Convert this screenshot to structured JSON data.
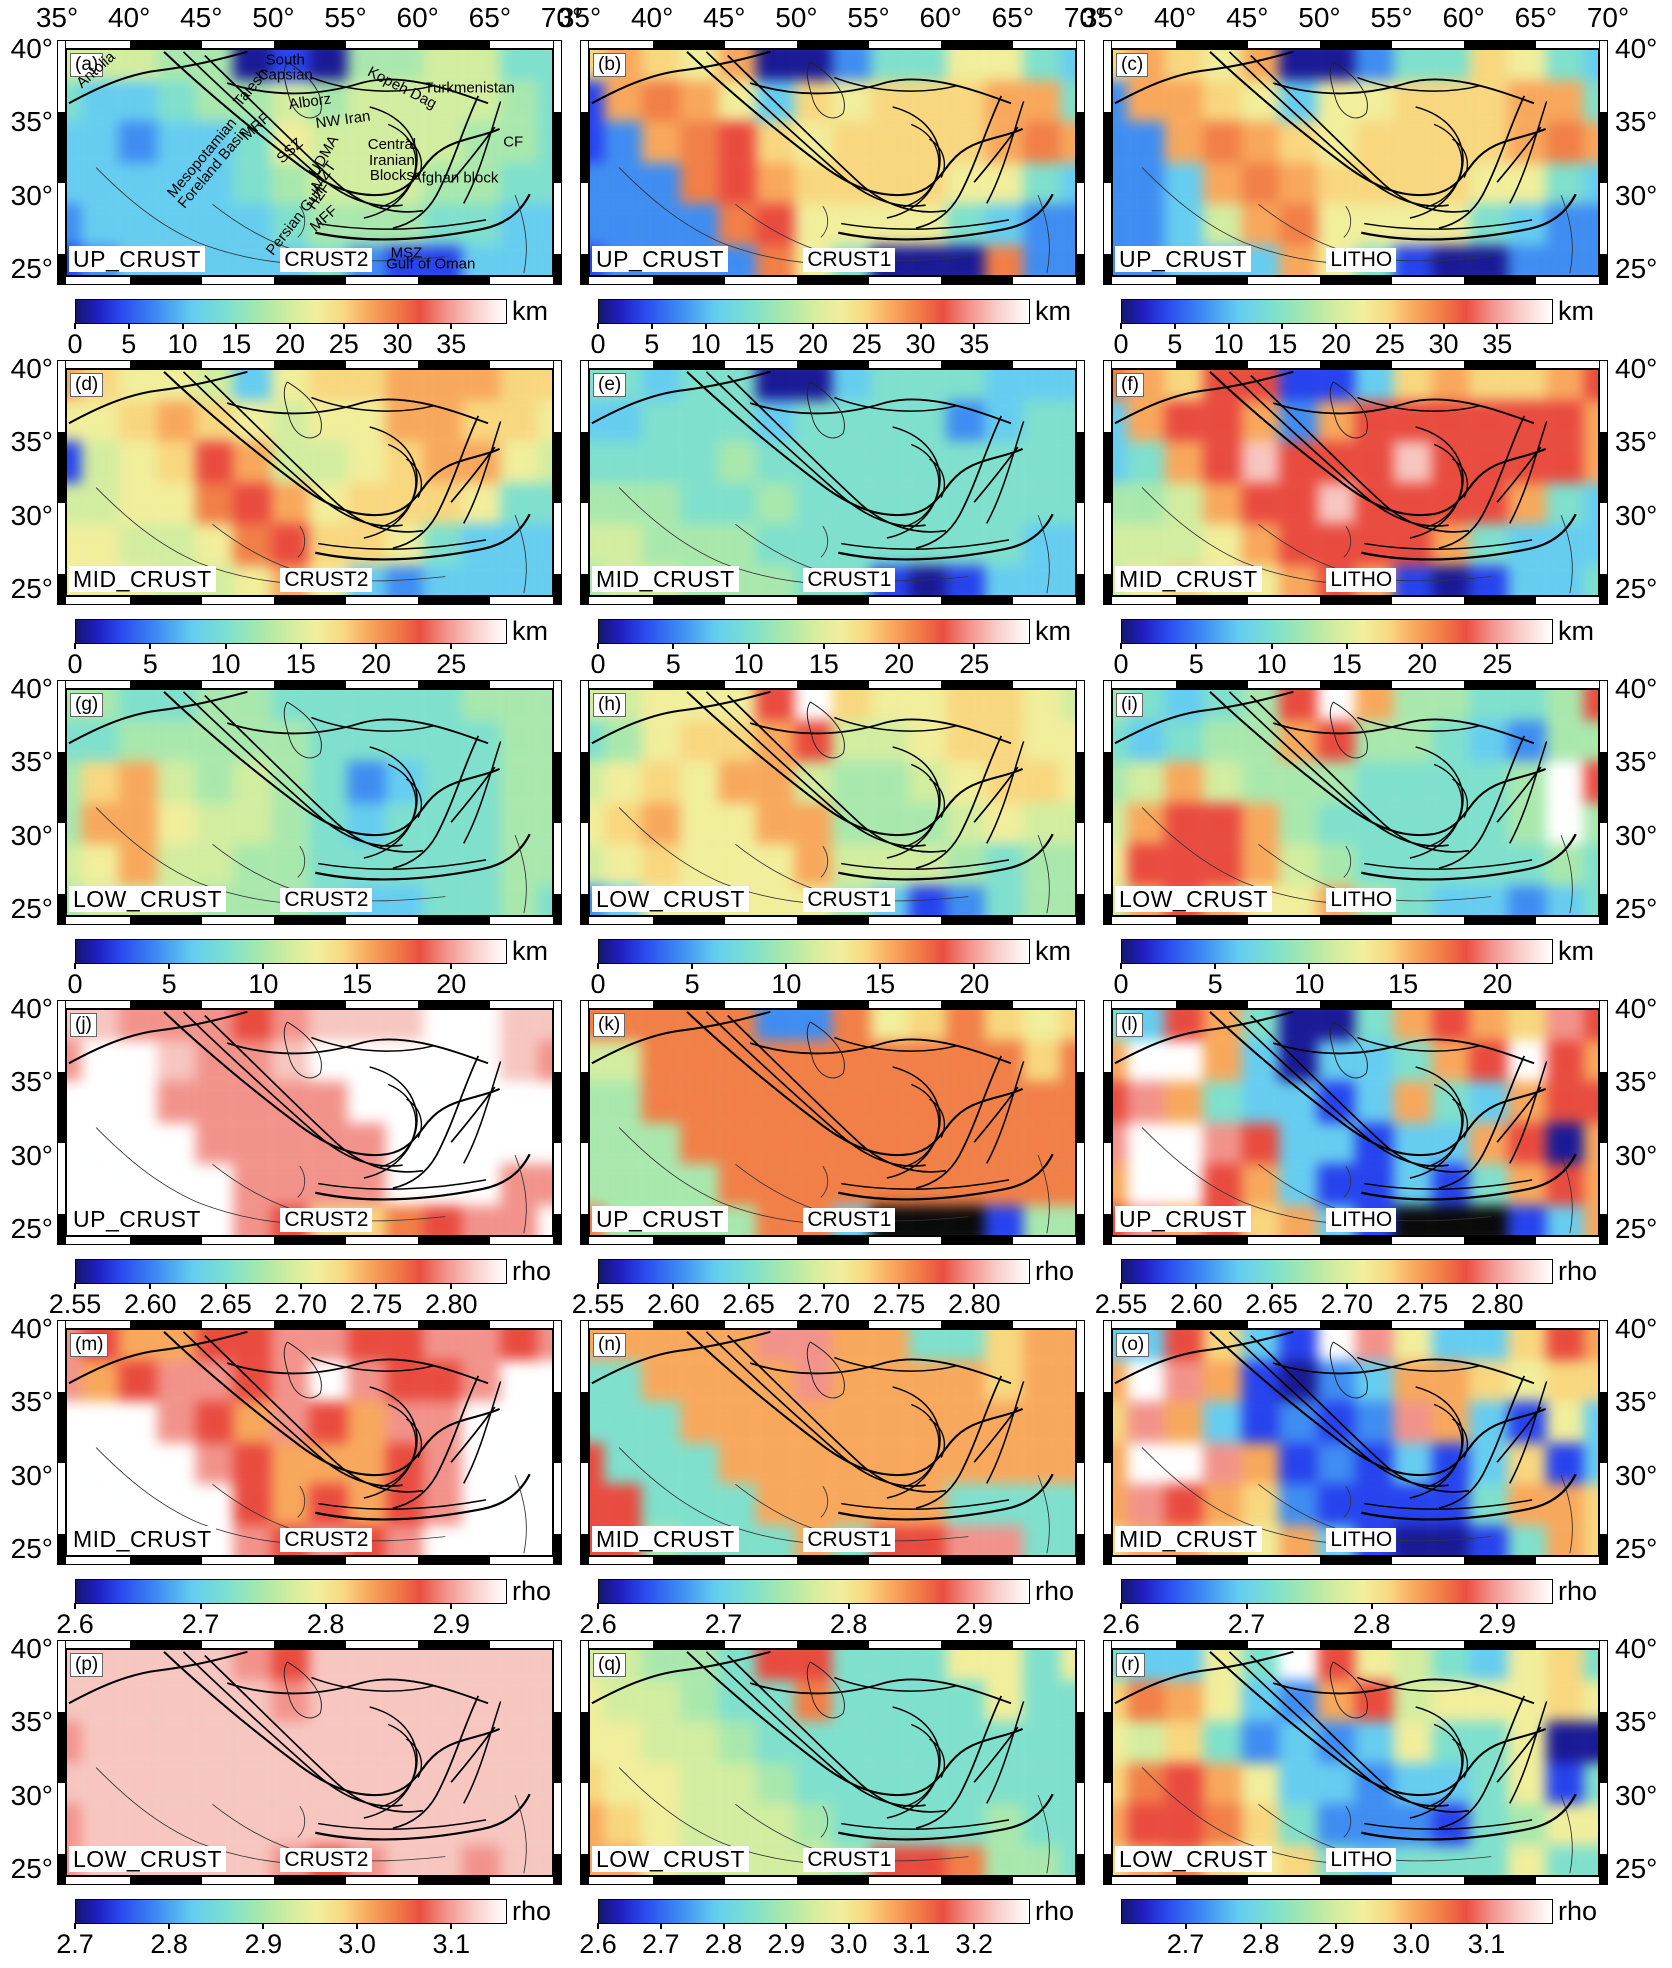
{
  "lon_ticks": [
    "35°",
    "40°",
    "45°",
    "50°",
    "55°",
    "60°",
    "65°",
    "70°"
  ],
  "lat_ticks": [
    "40°",
    "35°",
    "30°",
    "25°"
  ],
  "palette": {
    "0": "#0a0a0a",
    "1": "#1a1a96",
    "2": "#2743ee",
    "3": "#3f8df2",
    "4": "#66cdf0",
    "5": "#7fe0cd",
    "6": "#a9e8ad",
    "7": "#d2eda0",
    "8": "#f1ee9c",
    "9": "#f8d77f",
    "o": "#f8a85c",
    "O": "#f17f47",
    "R": "#e94b3f",
    "p": "#f2938b",
    "P": "#f7c6c0",
    "w": "#ffffff"
  },
  "rows": [
    {
      "panels": [
        {
          "letter": "(a)",
          "layer": "UP_CRUST",
          "model": "CRUST2",
          "grid": [
            "77766121667755",
            "54456676777765",
            "44344587777665",
            "44444567776655",
            "34444456665544",
            "23444445322444"
          ],
          "regions": [
            {
              "text": "Antolia",
              "x": 6,
              "y": 9,
              "rot": -42
            },
            {
              "text": "South\nCapsian",
              "x": 45,
              "y": 8,
              "rot": 0
            },
            {
              "text": "Talesh",
              "x": 38,
              "y": 17,
              "rot": -50
            },
            {
              "text": "Alborz",
              "x": 50,
              "y": 23,
              "rot": -8
            },
            {
              "text": "Kopeh Dag",
              "x": 69,
              "y": 17,
              "rot": 27
            },
            {
              "text": "Turkmenistan",
              "x": 83,
              "y": 17,
              "rot": 0
            },
            {
              "text": "NW Iran",
              "x": 57,
              "y": 31,
              "rot": -8
            },
            {
              "text": "MRF",
              "x": 39,
              "y": 34,
              "rot": -42
            },
            {
              "text": "Mesopotamian\nForeland Basin",
              "x": 29,
              "y": 50,
              "rot": -50
            },
            {
              "text": "SSZ",
              "x": 46,
              "y": 45,
              "rot": -42
            },
            {
              "text": "UDMA",
              "x": 53,
              "y": 47,
              "rot": -60
            },
            {
              "text": "MZT",
              "x": 53,
              "y": 56,
              "rot": -55
            },
            {
              "text": "HZF",
              "x": 52,
              "y": 65,
              "rot": -55
            },
            {
              "text": "Central\nIranian\nBlocks",
              "x": 67,
              "y": 49,
              "rot": 0
            },
            {
              "text": "Afghan block",
              "x": 80,
              "y": 57,
              "rot": 0
            },
            {
              "text": "CF",
              "x": 92,
              "y": 41,
              "rot": 0
            },
            {
              "text": "Persian Gulf",
              "x": 47,
              "y": 76,
              "rot": -52
            },
            {
              "text": "MFF",
              "x": 53,
              "y": 75,
              "rot": -42
            },
            {
              "text": "MSZ",
              "x": 70,
              "y": 90,
              "rot": 0
            },
            {
              "text": "Gulf of Oman",
              "x": 75,
              "y": 95,
              "rot": 0
            }
          ]
        },
        {
          "letter": "(b)",
          "layer": "UP_CRUST",
          "model": "CRUST1",
          "grid": [
            "9o98o113558854",
            "2oOo8498999oo5",
            "23oOR989999oOo",
            "333ORo99998854",
            "3333OR88885433",
            "23333O85111O33"
          ]
        },
        {
          "letter": "(c)",
          "layer": "UP_CRUST",
          "model": "LITHO",
          "grid": [
            "9o98o113559854",
            "3oo98488999oo5",
            "33oOo989999oOo",
            "334oOo99998854",
            "3347oO88885433",
            "33444o85211333"
          ]
        }
      ],
      "colorbars": [
        {
          "unit": "km",
          "ticks": [
            {
              "t": "0",
              "p": 0
            },
            {
              "t": "5",
              "p": 0.125
            },
            {
              "t": "10",
              "p": 0.25
            },
            {
              "t": "15",
              "p": 0.375
            },
            {
              "t": "20",
              "p": 0.5
            },
            {
              "t": "25",
              "p": 0.625
            },
            {
              "t": "30",
              "p": 0.75
            },
            {
              "t": "35",
              "p": 0.875
            }
          ]
        },
        {
          "unit": "km",
          "ticks": [
            {
              "t": "0",
              "p": 0
            },
            {
              "t": "5",
              "p": 0.125
            },
            {
              "t": "10",
              "p": 0.25
            },
            {
              "t": "15",
              "p": 0.375
            },
            {
              "t": "20",
              "p": 0.5
            },
            {
              "t": "25",
              "p": 0.625
            },
            {
              "t": "30",
              "p": 0.75
            },
            {
              "t": "35",
              "p": 0.875
            }
          ]
        },
        {
          "unit": "km",
          "ticks": [
            {
              "t": "0",
              "p": 0
            },
            {
              "t": "5",
              "p": 0.125
            },
            {
              "t": "10",
              "p": 0.25
            },
            {
              "t": "15",
              "p": 0.375
            },
            {
              "t": "20",
              "p": 0.5
            },
            {
              "t": "25",
              "p": 0.625
            },
            {
              "t": "30",
              "p": 0.75
            },
            {
              "t": "35",
              "p": 0.875
            }
          ]
        }
      ]
    },
    {
      "panels": [
        {
          "letter": "(d)",
          "layer": "MID_CRUST",
          "model": "CRUST2",
          "grid": [
            "o98874899ooo99",
            "889o98788oo998",
            "2789Ro7789oo87",
            "7788ORo8999855",
            "88778OR9985444",
            "888778o8434444"
          ]
        },
        {
          "letter": "(e)",
          "layer": "MID_CRUST",
          "model": "CRUST1",
          "grid": [
            "55455114555444",
            "44555455553455",
            "55556555555555",
            "66655655555555",
            "77666555555544",
            "67766655212444"
          ]
        },
        {
          "letter": "(f)",
          "layer": "MID_CRUST",
          "model": "LITHO",
          "grid": [
            "Oo9RR2249o99oR",
            "4oRRo3oRRRRRRo",
            "45oRPRRRPRRRRo",
            "667oRRPRRRRo54",
            "7778oRRRRo5444",
            "78988oRo212445"
          ]
        }
      ],
      "colorbars": [
        {
          "unit": "km",
          "ticks": [
            {
              "t": "0",
              "p": 0
            },
            {
              "t": "5",
              "p": 0.175
            },
            {
              "t": "10",
              "p": 0.35
            },
            {
              "t": "15",
              "p": 0.525
            },
            {
              "t": "20",
              "p": 0.7
            },
            {
              "t": "25",
              "p": 0.875
            }
          ]
        },
        {
          "unit": "km",
          "ticks": [
            {
              "t": "0",
              "p": 0
            },
            {
              "t": "5",
              "p": 0.175
            },
            {
              "t": "10",
              "p": 0.35
            },
            {
              "t": "15",
              "p": 0.525
            },
            {
              "t": "20",
              "p": 0.7
            },
            {
              "t": "25",
              "p": 0.875
            }
          ]
        },
        {
          "unit": "km",
          "ticks": [
            {
              "t": "0",
              "p": 0
            },
            {
              "t": "5",
              "p": 0.175
            },
            {
              "t": "10",
              "p": 0.35
            },
            {
              "t": "15",
              "p": 0.525
            },
            {
              "t": "20",
              "p": 0.7
            },
            {
              "t": "25",
              "p": 0.875
            }
          ]
        }
      ]
    },
    {
      "panels": [
        {
          "letter": "(g)",
          "layer": "LOW_CRUST",
          "model": "CRUST2",
          "grid": [
            "66556655555666",
            "55666665555566",
            "69o76765345566",
            "6oo87765455566",
            "78o77665555566",
            "67776665445565"
          ]
        },
        {
          "letter": "(h)",
          "layer": "LOW_CRUST",
          "model": "CRUST1",
          "grid": [
            "77888Rw9889987",
            "56899oR7789988",
            "7898oo76678998",
            "89o88oo6667877",
            "789888o7776566",
            "34888886423566"
          ]
        },
        {
          "letter": "(i)",
          "layer": "LOW_CRUST",
          "model": "LITHO",
          "grid": [
            "65456Rwo66556R",
            "54566oR6654366",
            "67o766655556wR",
            "7oRRo6555556w6",
            "8RRRo765555565",
            "7oRo88o6544345"
          ]
        }
      ],
      "colorbars": [
        {
          "unit": "km",
          "ticks": [
            {
              "t": "0",
              "p": 0
            },
            {
              "t": "5",
              "p": 0.219
            },
            {
              "t": "10",
              "p": 0.438
            },
            {
              "t": "15",
              "p": 0.656
            },
            {
              "t": "20",
              "p": 0.875
            }
          ]
        },
        {
          "unit": "km",
          "ticks": [
            {
              "t": "0",
              "p": 0
            },
            {
              "t": "5",
              "p": 0.219
            },
            {
              "t": "10",
              "p": 0.438
            },
            {
              "t": "15",
              "p": 0.656
            },
            {
              "t": "20",
              "p": 0.875
            }
          ]
        },
        {
          "unit": "km",
          "ticks": [
            {
              "t": "0",
              "p": 0
            },
            {
              "t": "5",
              "p": 0.219
            },
            {
              "t": "10",
              "p": 0.438
            },
            {
              "t": "15",
              "p": 0.656
            },
            {
              "t": "20",
              "p": 0.875
            }
          ]
        }
      ]
    },
    {
      "panels": [
        {
          "letter": "(j)",
          "layer": "UP_CRUST",
          "model": "CRUST2",
          "grid": [
            "PPpppRpPPPwwPP",
            "pwwPppPwwwwwPp",
            "wwwpppppwwwwww",
            "wwwwpppppwwwww",
            "wwwwwppppwwwpp",
            "wwwwwpR99ORppw"
          ]
        },
        {
          "letter": "(k)",
          "layer": "UP_CRUST",
          "model": "CRUST1",
          "grid": [
            "OOOOO33O89O989",
            "77OOOOOOOOOO9O",
            "66OOOOOOOOOOOO",
            "666OOOOOOOOOOO",
            "6666OOOOOOOOOO",
            "O6666OO4000266"
          ]
        },
        {
          "letter": "(l)",
          "layer": "UP_CRUST",
          "model": "LITHO",
          "grid": [
            "54Ro5115oRo9pR",
            "owwo41445oRwRo",
            "Rpo54424o54oRR",
            "pwwpR44244oR1o",
            "owwRo422425oRo",
            "RpoR9o4200024o"
          ]
        }
      ],
      "colorbars": [
        {
          "unit": "rho",
          "ticks": [
            {
              "t": "2.55",
              "p": 0
            },
            {
              "t": "2.60",
              "p": 0.175
            },
            {
              "t": "2.65",
              "p": 0.35
            },
            {
              "t": "2.70",
              "p": 0.525
            },
            {
              "t": "2.75",
              "p": 0.7
            },
            {
              "t": "2.80",
              "p": 0.875
            }
          ]
        },
        {
          "unit": "rho",
          "ticks": [
            {
              "t": "2.55",
              "p": 0
            },
            {
              "t": "2.60",
              "p": 0.175
            },
            {
              "t": "2.65",
              "p": 0.35
            },
            {
              "t": "2.70",
              "p": 0.525
            },
            {
              "t": "2.75",
              "p": 0.7
            },
            {
              "t": "2.80",
              "p": 0.875
            }
          ]
        },
        {
          "unit": "rho",
          "ticks": [
            {
              "t": "2.55",
              "p": 0
            },
            {
              "t": "2.60",
              "p": 0.175
            },
            {
              "t": "2.65",
              "p": 0.35
            },
            {
              "t": "2.70",
              "p": 0.525
            },
            {
              "t": "2.75",
              "p": 0.7
            },
            {
              "t": "2.80",
              "p": 0.875
            }
          ]
        }
      ]
    },
    {
      "panels": [
        {
          "letter": "(m)",
          "layer": "MID_CRUST",
          "model": "CRUST2",
          "grid": [
            "pRooRRppRRppRp",
            "poRppRpwpRRpww",
            "wwwpRopRoppwww",
            "wwwwpRoooRpwww",
            "wwwwwRoRoRpwww",
            "wwwwwpRpRpwwww"
          ]
        },
        {
          "letter": "(n)",
          "layer": "MID_CRUST",
          "model": "CRUST1",
          "grid": [
            "oooooppoo559oo",
            "55oooopoooo9oo",
            "555ooooooooooo",
            "R555oooooooooo",
            "RR555ooooo5555",
            "RR6555o5RRpp55"
          ]
        },
        {
          "letter": "(o)",
          "layer": "MID_CRUST",
          "model": "LITHO",
          "grid": [
            "44R942wp8449Ro",
            "owpo2134oo9899",
            "9po42323po4284",
            "owwpo232424924",
            "opRo9322225oo9",
            "9oo98o421125o9"
          ]
        }
      ],
      "colorbars": [
        {
          "unit": "rho",
          "ticks": [
            {
              "t": "2.6",
              "p": 0
            },
            {
              "t": "2.7",
              "p": 0.292
            },
            {
              "t": "2.8",
              "p": 0.583
            },
            {
              "t": "2.9",
              "p": 0.875
            }
          ]
        },
        {
          "unit": "rho",
          "ticks": [
            {
              "t": "2.6",
              "p": 0
            },
            {
              "t": "2.7",
              "p": 0.292
            },
            {
              "t": "2.8",
              "p": 0.583
            },
            {
              "t": "2.9",
              "p": 0.875
            }
          ]
        },
        {
          "unit": "rho",
          "ticks": [
            {
              "t": "2.6",
              "p": 0
            },
            {
              "t": "2.7",
              "p": 0.292
            },
            {
              "t": "2.8",
              "p": 0.583
            },
            {
              "t": "2.9",
              "p": 0.875
            }
          ]
        }
      ]
    },
    {
      "panels": [
        {
          "letter": "(p)",
          "layer": "LOW_CRUST",
          "model": "CRUST2",
          "grid": [
            "PPPPPpRPPPPPPP",
            "PPPPPPpPPPPPPP",
            "pPPPPPPPPPPPPP",
            "PPPPPPPPPPPPPP",
            "pPPPPPPPPPPPPP",
            "pPPPPPpRpPPpPP"
          ]
        },
        {
          "letter": "(q)",
          "layer": "LOW_CRUST",
          "model": "CRUST1",
          "grid": [
            "77665RR5558858",
            "877655O5555855",
            "88776555555555",
            "98877655555555",
            "o9877765555655",
            "oo877776RRO665"
          ]
        },
        {
          "letter": "(r)",
          "layer": "LOW_CRUST",
          "model": "LITHO",
          "grid": [
            "54485wR8754895",
            "9Oo843oR788898",
            "87953434855811",
            "9ORo8443445825",
            "oRRO9533325688",
            "9oO98954555855"
          ]
        }
      ],
      "colorbars": [
        {
          "unit": "rho",
          "ticks": [
            {
              "t": "2.7",
              "p": 0
            },
            {
              "t": "2.8",
              "p": 0.219
            },
            {
              "t": "2.9",
              "p": 0.438
            },
            {
              "t": "3.0",
              "p": 0.656
            },
            {
              "t": "3.1",
              "p": 0.875
            }
          ]
        },
        {
          "unit": "rho",
          "ticks": [
            {
              "t": "2.6",
              "p": 0
            },
            {
              "t": "2.7",
              "p": 0.146
            },
            {
              "t": "2.8",
              "p": 0.292
            },
            {
              "t": "2.9",
              "p": 0.438
            },
            {
              "t": "3.0",
              "p": 0.583
            },
            {
              "t": "3.1",
              "p": 0.729
            },
            {
              "t": "3.2",
              "p": 0.875
            }
          ]
        },
        {
          "unit": "rho",
          "ticks": [
            {
              "t": "2.7",
              "p": 0.15
            },
            {
              "t": "2.8",
              "p": 0.325
            },
            {
              "t": "2.9",
              "p": 0.5
            },
            {
              "t": "3.0",
              "p": 0.675
            },
            {
              "t": "3.1",
              "p": 0.85
            }
          ]
        }
      ]
    }
  ]
}
